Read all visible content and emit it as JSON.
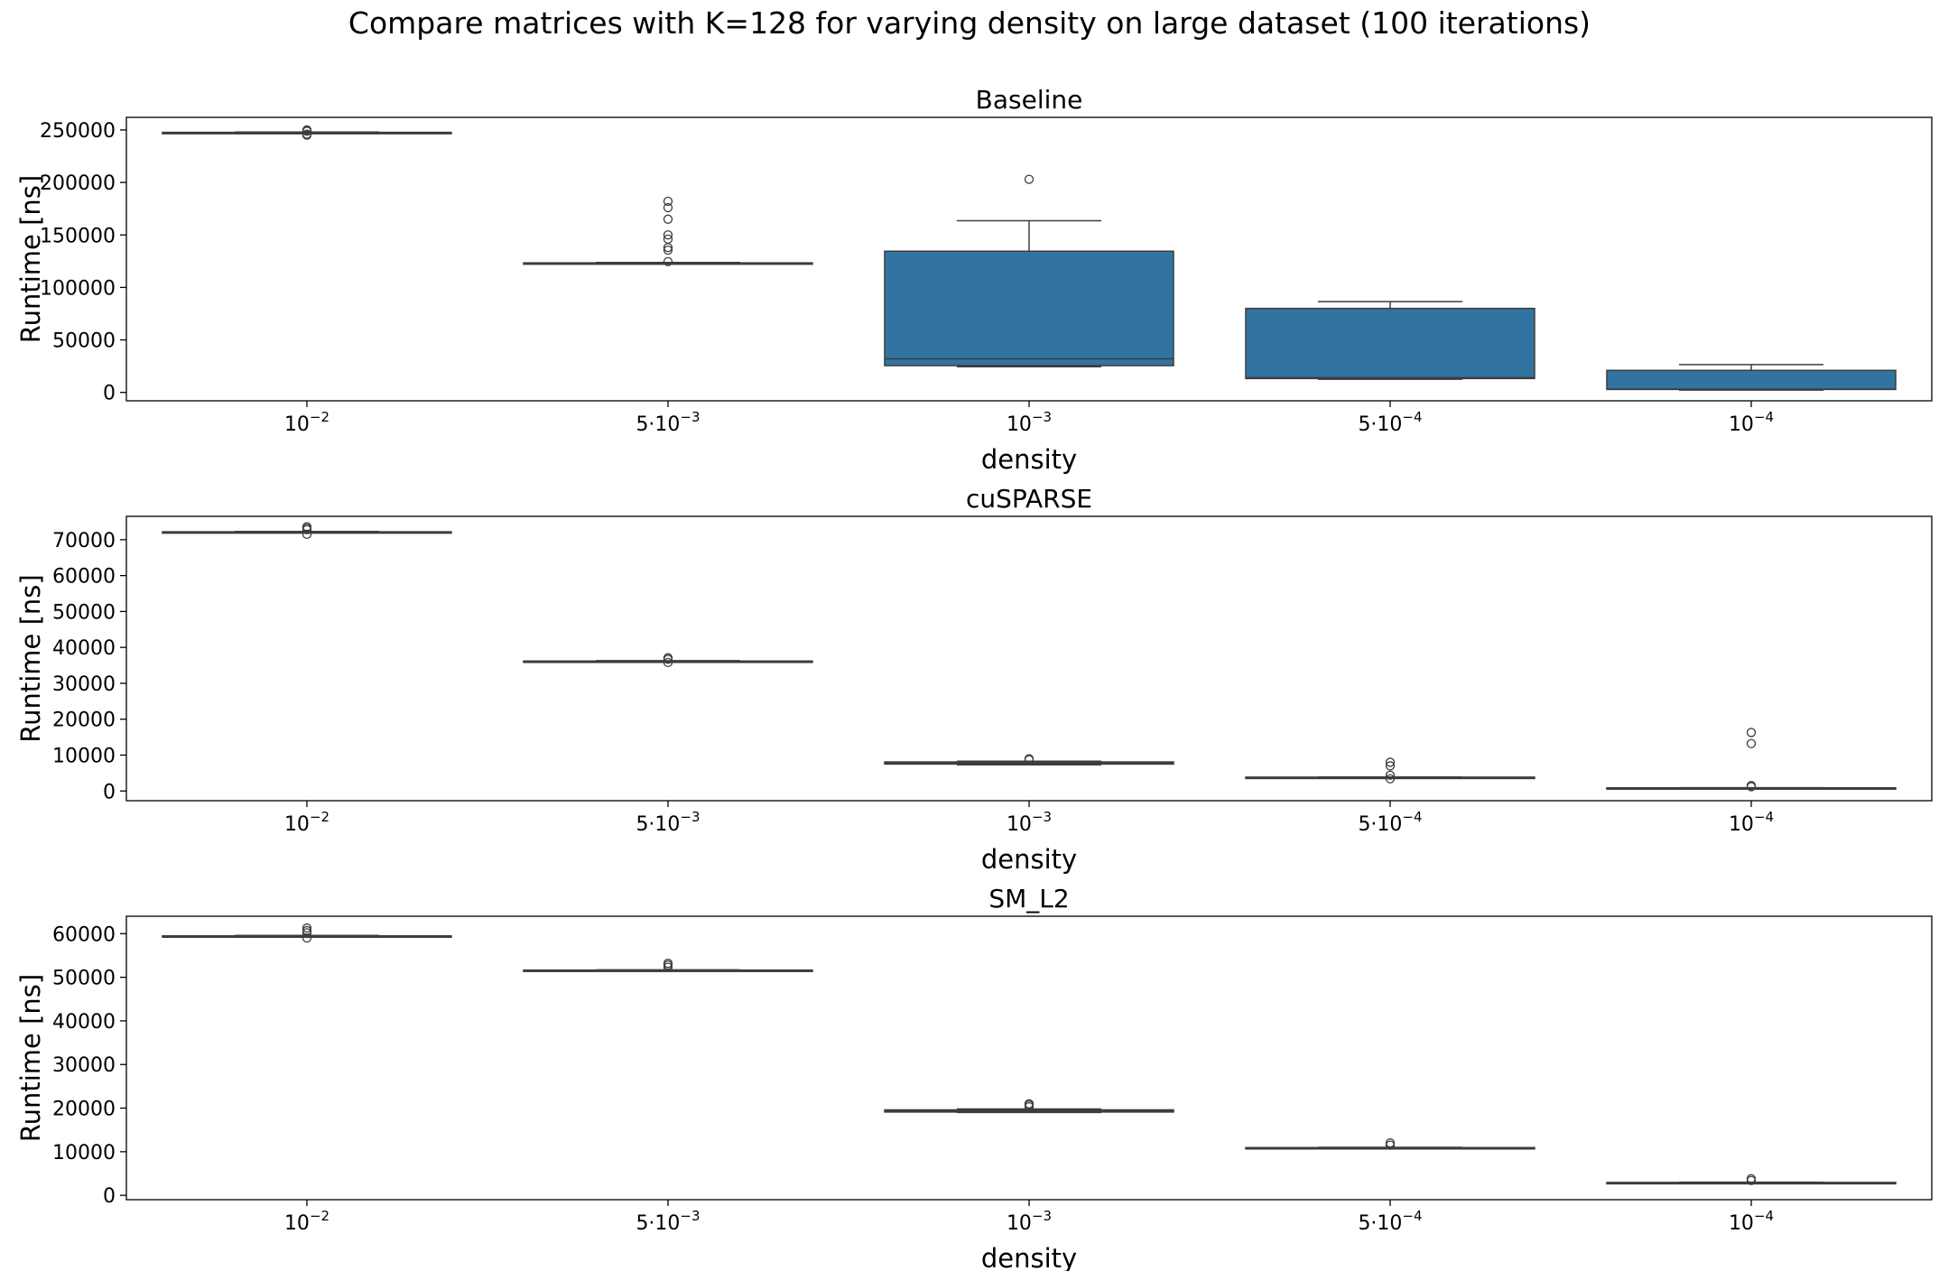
{
  "figure": {
    "title": "Compare matrices with K=128 for varying density on large dataset (100 iterations)"
  },
  "colors": {
    "box_fill": "#3274a1",
    "line": "#3d3d3d",
    "axes": "#000000"
  },
  "chart_data": [
    {
      "type": "box",
      "title": "Baseline",
      "xlabel": "density",
      "ylabel": "Runtime [ns]",
      "categories": [
        {
          "mant": "",
          "exp": "−2"
        },
        {
          "mant": "5·",
          "exp": "−3"
        },
        {
          "mant": "",
          "exp": "−3"
        },
        {
          "mant": "5·",
          "exp": "−4"
        },
        {
          "mant": "",
          "exp": "−4"
        }
      ],
      "ylim": [
        -8000,
        262000
      ],
      "yticks": [
        0,
        50000,
        100000,
        150000,
        200000,
        250000
      ],
      "boxes": [
        {
          "whislo": 246500,
          "q1": 247000,
          "med": 247300,
          "q3": 247700,
          "whishi": 248000,
          "fliers": [
            245000,
            246000,
            248800,
            249500,
            250000
          ]
        },
        {
          "whislo": 122500,
          "q1": 122800,
          "med": 123000,
          "q3": 123400,
          "whishi": 123800,
          "fliers": [
            124500,
            135500,
            138000,
            146000,
            150000,
            165000,
            176000,
            182000
          ]
        },
        {
          "whislo": 24500,
          "q1": 25500,
          "med": 32000,
          "q3": 134500,
          "whishi": 163500,
          "fliers": [
            203000
          ]
        },
        {
          "whislo": 12500,
          "q1": 13200,
          "med": 14000,
          "q3": 80000,
          "whishi": 86500,
          "fliers": []
        },
        {
          "whislo": 2200,
          "q1": 2800,
          "med": 3200,
          "q3": 21000,
          "whishi": 26500,
          "fliers": []
        }
      ]
    },
    {
      "type": "box",
      "title": "cuSPARSE",
      "xlabel": "density",
      "ylabel": "Runtime [ns]",
      "categories": [
        {
          "mant": "",
          "exp": "−2"
        },
        {
          "mant": "5·",
          "exp": "−3"
        },
        {
          "mant": "",
          "exp": "−3"
        },
        {
          "mant": "5·",
          "exp": "−4"
        },
        {
          "mant": "",
          "exp": "−4"
        }
      ],
      "ylim": [
        -2700,
        76500
      ],
      "yticks": [
        0,
        10000,
        20000,
        30000,
        40000,
        50000,
        60000,
        70000
      ],
      "boxes": [
        {
          "whislo": 71900,
          "q1": 72000,
          "med": 72100,
          "q3": 72200,
          "whishi": 72300,
          "fliers": [
            71500,
            72800,
            73200,
            73600
          ]
        },
        {
          "whislo": 35900,
          "q1": 36000,
          "med": 36100,
          "q3": 36200,
          "whishi": 36300,
          "fliers": [
            35800,
            36700,
            37100
          ]
        },
        {
          "whislo": 7300,
          "q1": 7500,
          "med": 7800,
          "q3": 8100,
          "whishi": 8300,
          "fliers": [
            8700,
            9000
          ]
        },
        {
          "whislo": 3700,
          "q1": 3750,
          "med": 3800,
          "q3": 3850,
          "whishi": 3900,
          "fliers": [
            3400,
            4400,
            7000,
            8000
          ]
        },
        {
          "whislo": 800,
          "q1": 830,
          "med": 860,
          "q3": 890,
          "whishi": 920,
          "fliers": [
            1200,
            1500,
            13200,
            16300
          ]
        }
      ]
    },
    {
      "type": "box",
      "title": "SM_L2",
      "xlabel": "density",
      "ylabel": "Runtime [ns]",
      "categories": [
        {
          "mant": "",
          "exp": "−2"
        },
        {
          "mant": "5·",
          "exp": "−3"
        },
        {
          "mant": "",
          "exp": "−3"
        },
        {
          "mant": "5·",
          "exp": "−4"
        },
        {
          "mant": "",
          "exp": "−4"
        }
      ],
      "ylim": [
        -1000,
        64000
      ],
      "yticks": [
        0,
        10000,
        20000,
        30000,
        40000,
        50000,
        60000
      ],
      "boxes": [
        {
          "whislo": 59200,
          "q1": 59300,
          "med": 59400,
          "q3": 59500,
          "whishi": 59600,
          "fliers": [
            59000,
            60200,
            60700,
            61300
          ]
        },
        {
          "whislo": 51500,
          "q1": 51550,
          "med": 51600,
          "q3": 51650,
          "whishi": 51700,
          "fliers": [
            52300,
            52800,
            53200
          ]
        },
        {
          "whislo": 19000,
          "q1": 19100,
          "med": 19300,
          "q3": 19600,
          "whishi": 19800,
          "fliers": [
            20300,
            20700,
            21000
          ]
        },
        {
          "whislo": 10800,
          "q1": 10850,
          "med": 10900,
          "q3": 10950,
          "whishi": 11000,
          "fliers": [
            11500,
            12000
          ]
        },
        {
          "whislo": 2800,
          "q1": 2850,
          "med": 2900,
          "q3": 2950,
          "whishi": 3000,
          "fliers": [
            3400,
            3800
          ]
        }
      ]
    }
  ]
}
